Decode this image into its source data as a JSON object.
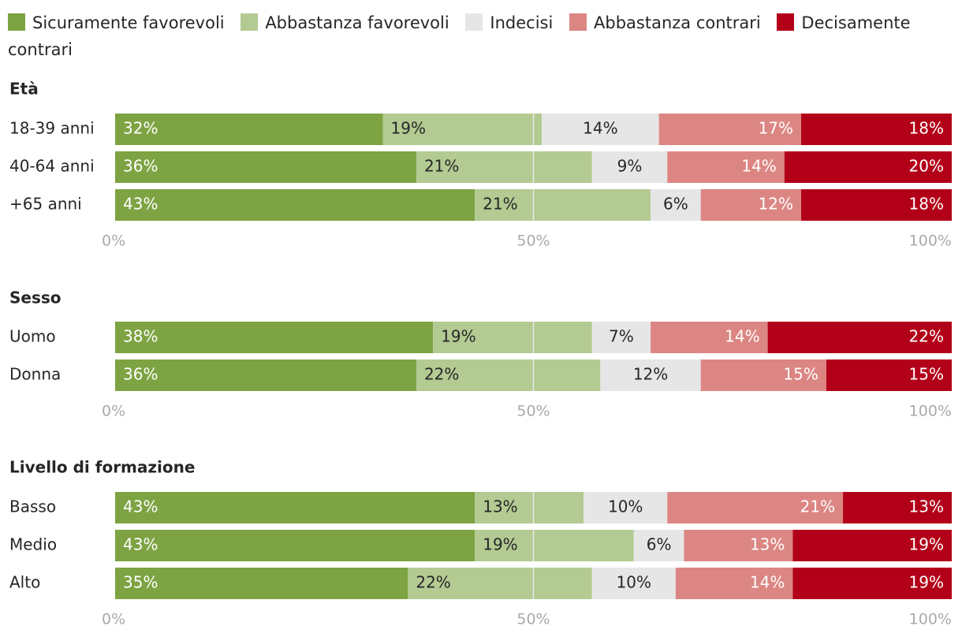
{
  "legend": {
    "items": [
      {
        "label": "Sicuramente favorevoli",
        "color": "#7da342"
      },
      {
        "label": "Abbastanza favorevoli",
        "color": "#b3ca92"
      },
      {
        "label": "Indecisi",
        "color": "#e6e6e6"
      },
      {
        "label": "Abbastanza contrari",
        "color": "#dc8683"
      },
      {
        "label": "Decisamente contrari",
        "color": "#b30019"
      }
    ]
  },
  "colors": {
    "text": "#262626",
    "axis_text": "#aaaaaa",
    "gridline": "#f2f2f2",
    "label_light": "#ffffff",
    "label_dark": "#262626"
  },
  "chart_data": {
    "type": "bar",
    "orientation": "horizontal",
    "stacked": true,
    "series": [
      "Sicuramente favorevoli",
      "Abbastanza favorevoli",
      "Indecisi",
      "Abbastanza contrari",
      "Decisamente contrari"
    ],
    "xlim": [
      0,
      100
    ],
    "ticks": [
      "0%",
      "50%",
      "100%"
    ],
    "groups": [
      {
        "title": "Età",
        "rows": [
          {
            "label": "18-39 anni",
            "values": [
              32,
              19,
              14,
              17,
              18
            ]
          },
          {
            "label": "40-64 anni",
            "values": [
              36,
              21,
              9,
              14,
              20
            ]
          },
          {
            "label": "+65 anni",
            "values": [
              43,
              21,
              6,
              12,
              18
            ]
          }
        ]
      },
      {
        "title": "Sesso",
        "rows": [
          {
            "label": "Uomo",
            "values": [
              38,
              19,
              7,
              14,
              22
            ]
          },
          {
            "label": "Donna",
            "values": [
              36,
              22,
              12,
              15,
              15
            ]
          }
        ]
      },
      {
        "title": "Livello di formazione",
        "rows": [
          {
            "label": "Basso",
            "values": [
              43,
              13,
              10,
              21,
              13
            ]
          },
          {
            "label": "Medio",
            "values": [
              43,
              19,
              6,
              13,
              19
            ]
          },
          {
            "label": "Alto",
            "values": [
              35,
              22,
              10,
              14,
              19
            ]
          }
        ]
      }
    ]
  }
}
